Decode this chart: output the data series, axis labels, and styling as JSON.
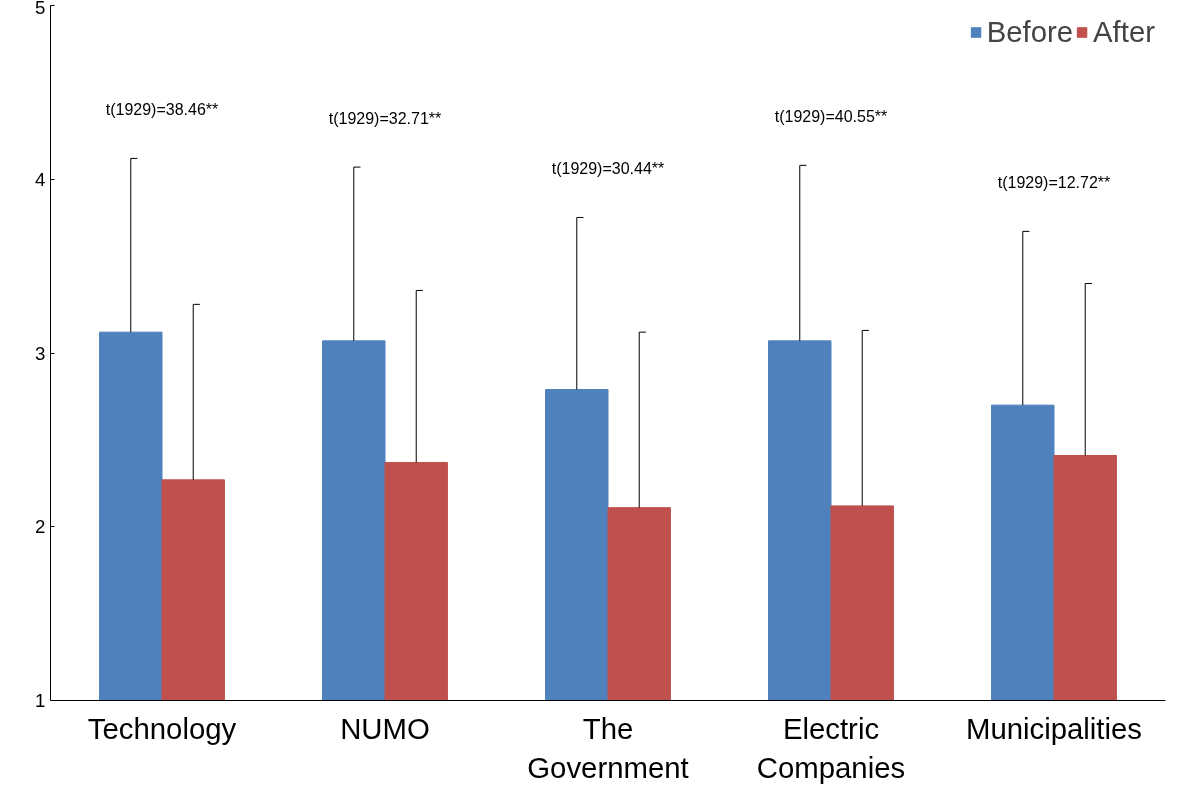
{
  "chart_data": {
    "type": "bar",
    "categories": [
      "Technology",
      "NUMO",
      "The Government",
      "Electric Companies",
      "Municipalities"
    ],
    "series": [
      {
        "name": "Before",
        "color": "#4f81bd",
        "values": [
          3.12,
          3.07,
          2.79,
          3.07,
          2.7
        ],
        "errors": [
          [
            3.12,
            4.12
          ],
          [
            3.07,
            4.07
          ],
          [
            2.79,
            3.78
          ],
          [
            3.07,
            4.08
          ],
          [
            2.7,
            3.7
          ]
        ]
      },
      {
        "name": "After",
        "color": "#c0504d",
        "values": [
          2.27,
          2.37,
          2.11,
          2.12,
          2.41
        ],
        "errors": [
          [
            2.27,
            3.28
          ],
          [
            2.37,
            3.36
          ],
          [
            2.11,
            3.12
          ],
          [
            2.12,
            3.13
          ],
          [
            2.41,
            3.4
          ]
        ]
      }
    ],
    "ylim": [
      1,
      5
    ],
    "yticks": [
      1,
      2,
      3,
      4,
      5
    ],
    "grid": false,
    "legend": "top right",
    "annotations": [
      "t(1929)=38.46**",
      "t(1929)=32.71**",
      "t(1929)=30.44**",
      "t(1929)=40.55**",
      "t(1929)=12.72**"
    ]
  }
}
